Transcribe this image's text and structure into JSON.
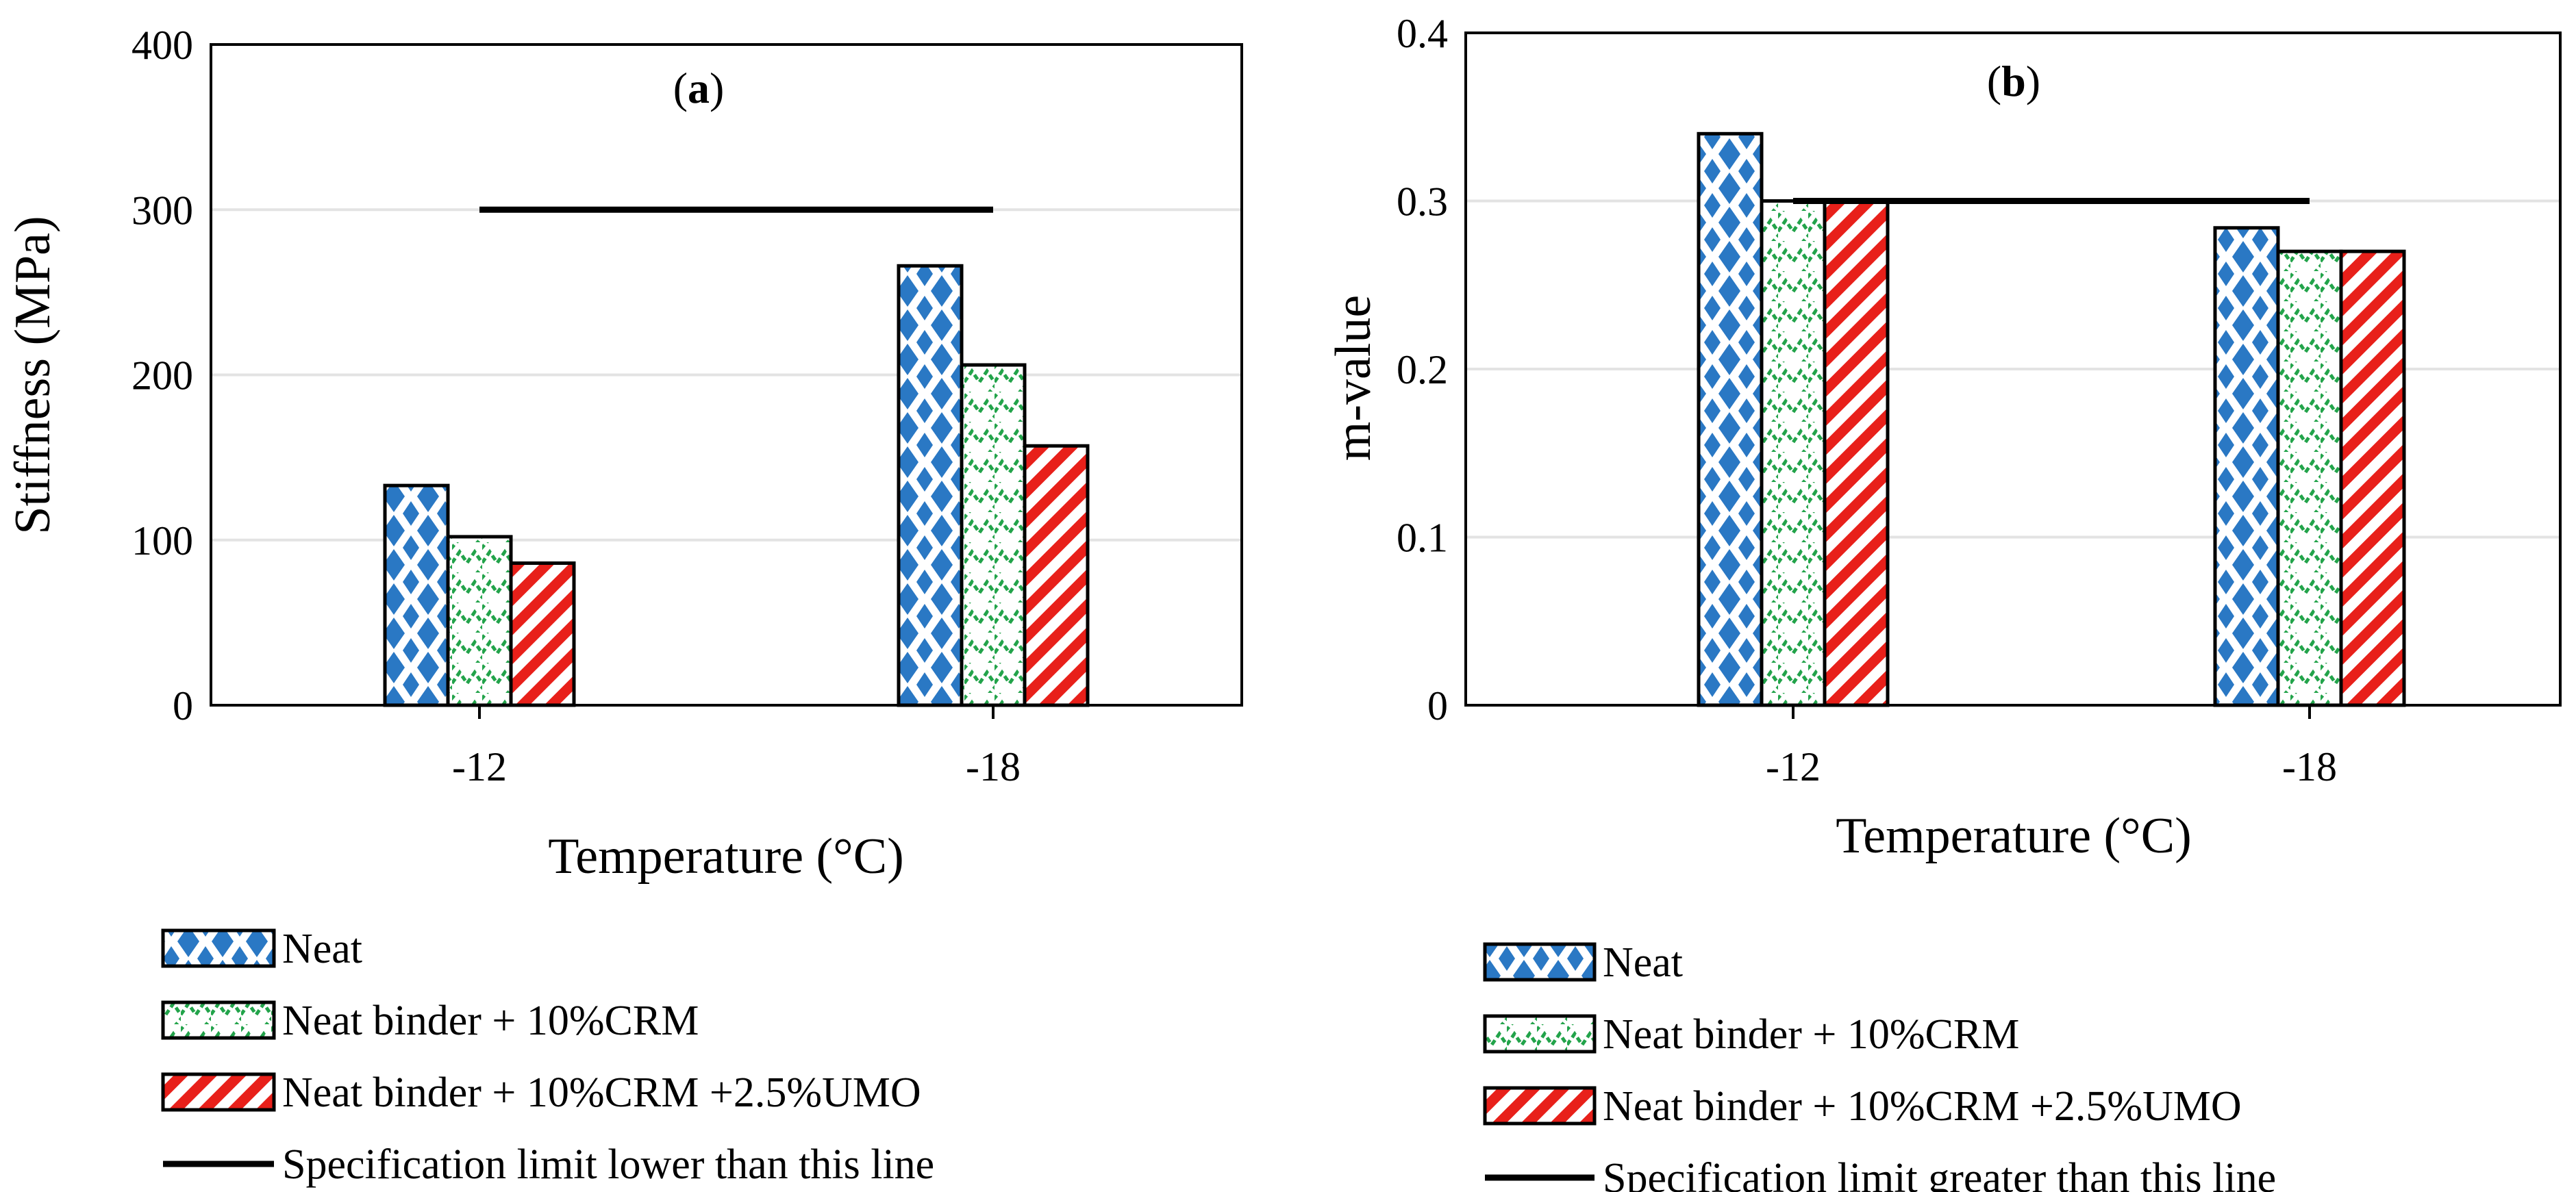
{
  "chart_data": [
    {
      "type": "bar",
      "panel_label": "a",
      "title": "",
      "xlabel": "Temperature (°C)",
      "ylabel": "Stiffness (MPa)",
      "ylim": [
        0,
        400
      ],
      "yticks": [
        0,
        100,
        200,
        300,
        400
      ],
      "grid": true,
      "categories": [
        "-12",
        "-18"
      ],
      "series": [
        {
          "name": "Neat",
          "values": [
            133,
            266
          ],
          "color": "#2a78c4",
          "pattern": "dots"
        },
        {
          "name": "Neat binder + 10%CRM",
          "values": [
            102,
            206
          ],
          "color": "#22a34a",
          "pattern": "zigzag"
        },
        {
          "name": "Neat binder + 10%CRM +2.5%UMO",
          "values": [
            86,
            157
          ],
          "color": "#e8201a",
          "pattern": "diagonal"
        }
      ],
      "reference_line": {
        "name": "Specification limit lower than this line",
        "value": 300,
        "from_category": "-12",
        "to_category": "-18"
      },
      "legend_position": "bottom"
    },
    {
      "type": "bar",
      "panel_label": "b",
      "title": "",
      "xlabel": "Temperature (°C)",
      "ylabel": "m-value",
      "ylim": [
        0,
        0.4
      ],
      "yticks": [
        "0",
        "0.1",
        "0.2",
        "0.3",
        "0.4"
      ],
      "grid": true,
      "categories": [
        "-12",
        "-18"
      ],
      "series": [
        {
          "name": "Neat",
          "values": [
            0.34,
            0.284
          ],
          "color": "#2a78c4",
          "pattern": "dots"
        },
        {
          "name": "Neat binder + 10%CRM",
          "values": [
            0.3,
            0.27
          ],
          "color": "#22a34a",
          "pattern": "zigzag"
        },
        {
          "name": "Neat binder + 10%CRM +2.5%UMO",
          "values": [
            0.3,
            0.27
          ],
          "color": "#e8201a",
          "pattern": "diagonal"
        }
      ],
      "reference_line": {
        "name": "Specification limit greater than this line",
        "value": 0.3,
        "from_category": "-12",
        "to_category": "-18"
      },
      "legend_position": "bottom"
    }
  ]
}
